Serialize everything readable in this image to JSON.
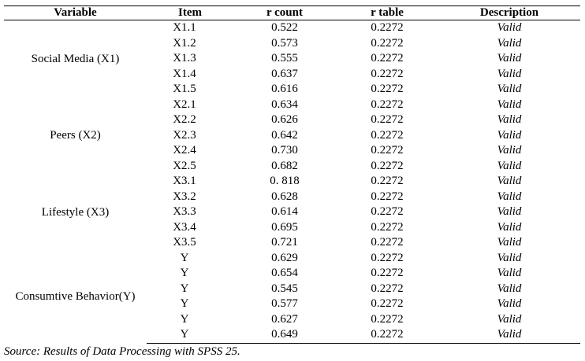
{
  "table": {
    "headers": {
      "variable": "Variable",
      "item": "Item",
      "r_count": "r count",
      "r_table": "r table",
      "description": "Description"
    },
    "groups": [
      {
        "variable": "Social Media (X1)",
        "rows": [
          {
            "item": "X1.1",
            "r_count": "0.522",
            "r_table": "0.2272",
            "description": "Valid"
          },
          {
            "item": "X1.2",
            "r_count": "0.573",
            "r_table": "0.2272",
            "description": "Valid"
          },
          {
            "item": "X1.3",
            "r_count": "0.555",
            "r_table": "0.2272",
            "description": "Valid"
          },
          {
            "item": "X1.4",
            "r_count": "0.637",
            "r_table": "0.2272",
            "description": "Valid"
          },
          {
            "item": "X1.5",
            "r_count": "0.616",
            "r_table": "0.2272",
            "description": "Valid"
          }
        ]
      },
      {
        "variable": "Peers  (X2)",
        "rows": [
          {
            "item": "X2.1",
            "r_count": "0.634",
            "r_table": "0.2272",
            "description": "Valid"
          },
          {
            "item": "X2.2",
            "r_count": "0.626",
            "r_table": "0.2272",
            "description": "Valid"
          },
          {
            "item": "X2.3",
            "r_count": "0.642",
            "r_table": "0.2272",
            "description": "Valid"
          },
          {
            "item": "X2.4",
            "r_count": "0.730",
            "r_table": "0.2272",
            "description": "Valid"
          },
          {
            "item": "X2.5",
            "r_count": "0.682",
            "r_table": "0.2272",
            "description": "Valid"
          }
        ]
      },
      {
        "variable": "Lifestyle (X3)",
        "rows": [
          {
            "item": "X3.1",
            "r_count": "0. 818",
            "r_table": "0.2272",
            "description": "Valid"
          },
          {
            "item": "X3.2",
            "r_count": "0.628",
            "r_table": "0.2272",
            "description": "Valid"
          },
          {
            "item": "X3.3",
            "r_count": "0.614",
            "r_table": "0.2272",
            "description": "Valid"
          },
          {
            "item": "X3.4",
            "r_count": "0.695",
            "r_table": "0.2272",
            "description": "Valid"
          },
          {
            "item": "X3.5",
            "r_count": "0.721",
            "r_table": "0.2272",
            "description": "Valid"
          }
        ]
      },
      {
        "variable": "Consumtive Behavior(Y)",
        "rows": [
          {
            "item": "Y",
            "r_count": "0.629",
            "r_table": "0.2272",
            "description": "Valid"
          },
          {
            "item": "Y",
            "r_count": "0.654",
            "r_table": "0.2272",
            "description": "Valid"
          },
          {
            "item": "Y",
            "r_count": "0.545",
            "r_table": "0.2272",
            "description": "Valid"
          },
          {
            "item": "Y",
            "r_count": "0.577",
            "r_table": "0.2272",
            "description": "Valid"
          },
          {
            "item": "Y",
            "r_count": "0.627",
            "r_table": "0.2272",
            "description": "Valid"
          },
          {
            "item": "Y",
            "r_count": "0.649",
            "r_table": "0.2272",
            "description": "Valid"
          }
        ]
      }
    ]
  },
  "source_note": "Source: Results of Data Processing with SPSS 25."
}
